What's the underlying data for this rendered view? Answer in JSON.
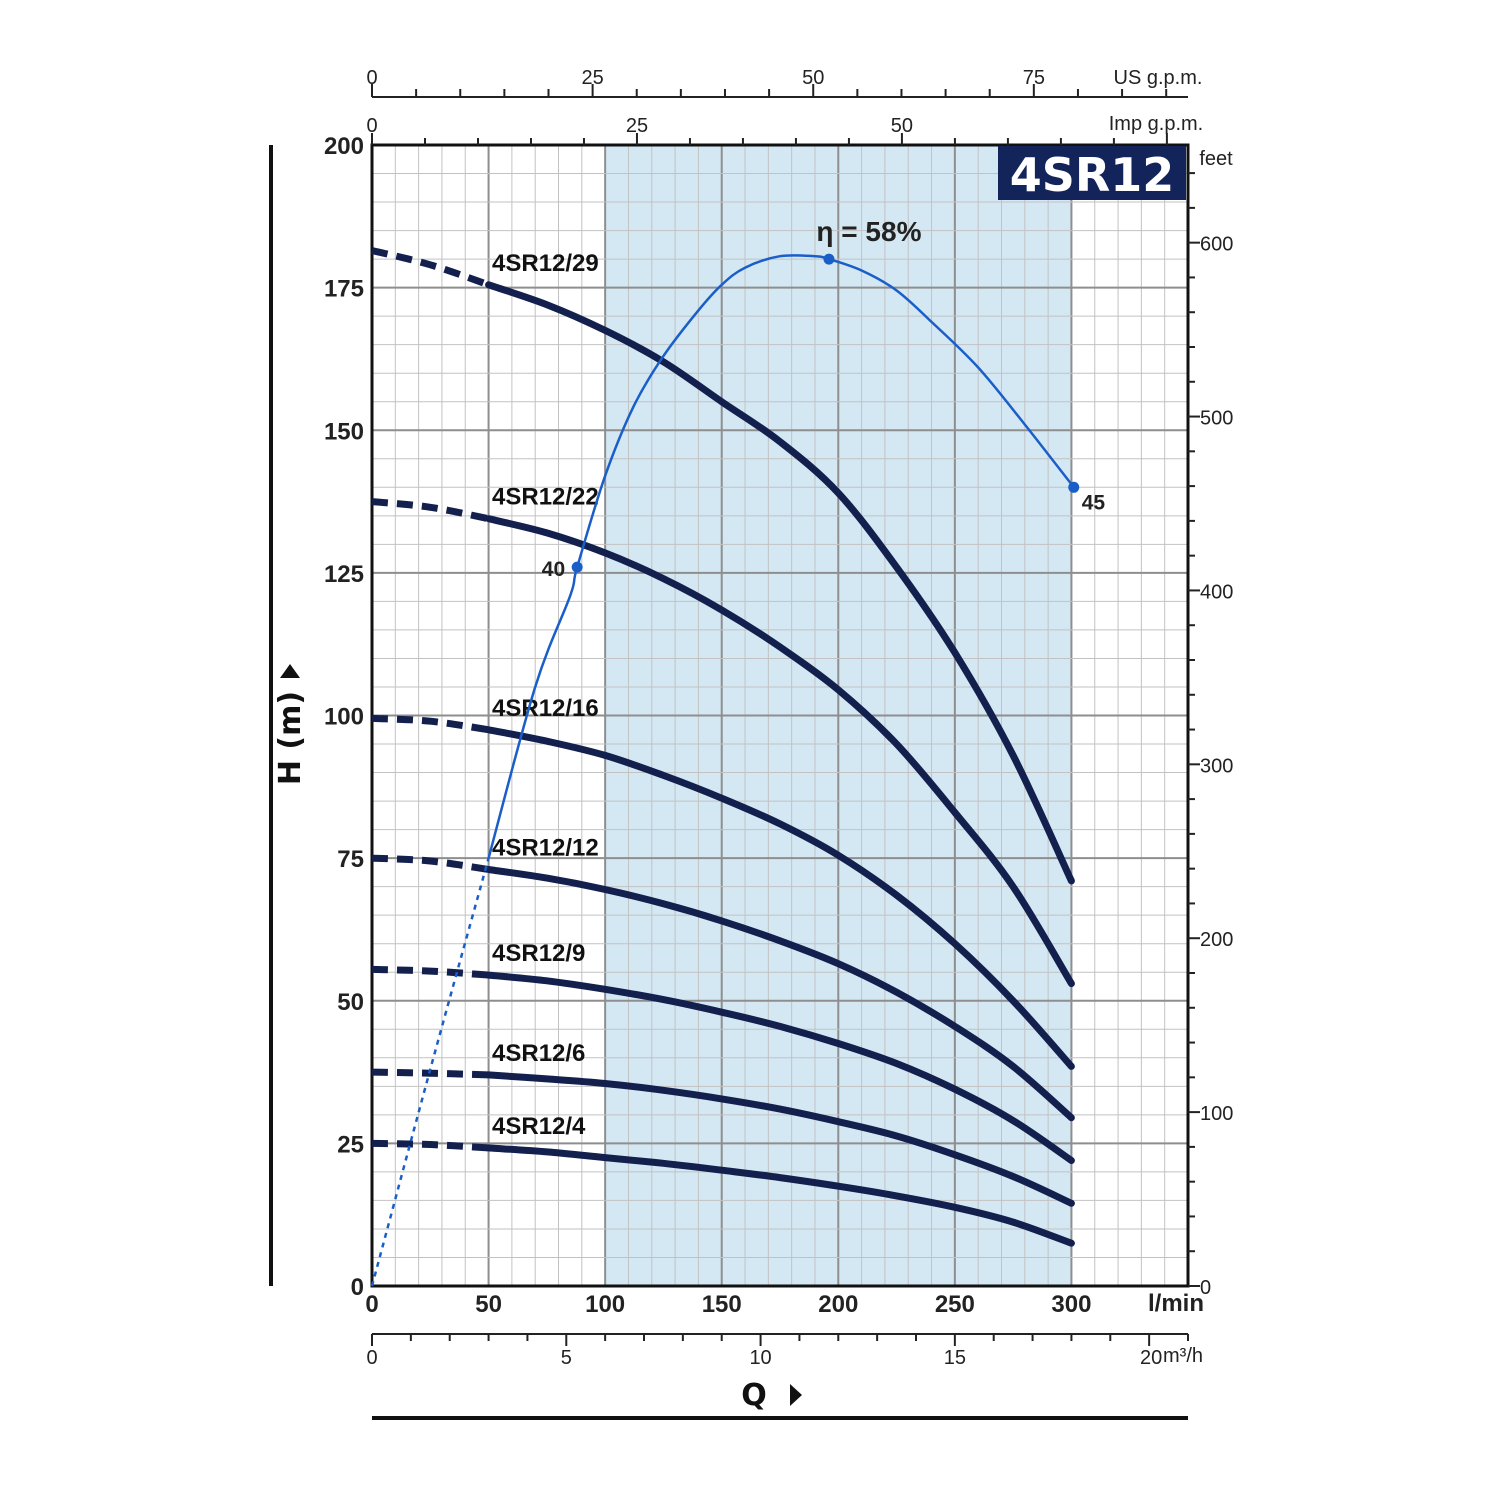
{
  "chart_data": {
    "type": "line",
    "badge": "4SR12",
    "xlabel": "Q",
    "ylabel": "H (m)",
    "x_unit": "l/min",
    "xlim": [
      0,
      350
    ],
    "ylim": [
      0,
      200
    ],
    "x_ticks": [
      0,
      50,
      100,
      150,
      200,
      250,
      300
    ],
    "y_ticks": [
      0,
      25,
      50,
      75,
      100,
      125,
      150,
      175,
      200
    ],
    "grid": true,
    "recommended_range": [
      100,
      300
    ],
    "colors": {
      "curve": "#13204e",
      "efficiency": "#1a5ec8",
      "shade": "#d4e8f4",
      "grid": "#b0b0b0",
      "badge_bg": "#13245a"
    },
    "us_gpm_axis": {
      "unit": "US g.p.m.",
      "ticks": [
        0,
        25,
        50,
        75
      ]
    },
    "imp_gpm_axis": {
      "unit": "Imp g.p.m.",
      "ticks": [
        0,
        25,
        50
      ]
    },
    "feet_axis": {
      "unit": "feet",
      "ticks": [
        0,
        100,
        200,
        300,
        400,
        500,
        600
      ]
    },
    "m3h_axis": {
      "unit": "m³/h",
      "ticks": [
        0,
        5,
        10,
        15,
        20
      ]
    },
    "series": [
      {
        "name": "4SR12/29",
        "x": [
          0,
          25,
          50,
          75,
          100,
          125,
          150,
          175,
          200,
          225,
          250,
          275,
          300
        ],
        "y": [
          181.5,
          179,
          175.5,
          172,
          167.5,
          162,
          155,
          148,
          139,
          126,
          111,
          93,
          71
        ]
      },
      {
        "name": "4SR12/22",
        "x": [
          0,
          25,
          50,
          75,
          100,
          125,
          150,
          175,
          200,
          225,
          250,
          275,
          300
        ],
        "y": [
          137.5,
          136.5,
          134.5,
          132,
          128.5,
          124,
          118.5,
          112,
          104.5,
          95,
          83,
          70,
          53
        ]
      },
      {
        "name": "4SR12/16",
        "x": [
          0,
          25,
          50,
          75,
          100,
          125,
          150,
          175,
          200,
          225,
          250,
          275,
          300
        ],
        "y": [
          99.5,
          99,
          97.5,
          95.5,
          93,
          89.5,
          85.5,
          81,
          75.5,
          68.5,
          60,
          50,
          38.5
        ]
      },
      {
        "name": "4SR12/12",
        "x": [
          0,
          25,
          50,
          75,
          100,
          125,
          150,
          175,
          200,
          225,
          250,
          275,
          300
        ],
        "y": [
          75,
          74.5,
          73,
          71.5,
          69.5,
          67,
          64,
          60.5,
          56.5,
          51.5,
          45.5,
          38.5,
          29.5
        ]
      },
      {
        "name": "4SR12/9",
        "x": [
          0,
          25,
          50,
          75,
          100,
          125,
          150,
          175,
          200,
          225,
          250,
          275,
          300
        ],
        "y": [
          55.5,
          55.2,
          54.5,
          53.5,
          52,
          50.2,
          48,
          45.5,
          42.5,
          39,
          34.5,
          29,
          22
        ]
      },
      {
        "name": "4SR12/6",
        "x": [
          0,
          25,
          50,
          75,
          100,
          125,
          150,
          175,
          200,
          225,
          250,
          275,
          300
        ],
        "y": [
          37.5,
          37.3,
          37,
          36.3,
          35.5,
          34.3,
          32.8,
          31,
          28.8,
          26.3,
          23,
          19.2,
          14.5
        ]
      },
      {
        "name": "4SR12/4",
        "x": [
          0,
          25,
          50,
          75,
          100,
          125,
          150,
          175,
          200,
          225,
          250,
          275,
          300
        ],
        "y": [
          25,
          24.8,
          24.2,
          23.5,
          22.5,
          21.5,
          20.3,
          19,
          17.5,
          15.8,
          13.8,
          11.2,
          7.5
        ]
      }
    ],
    "efficiency_curve": {
      "label": "η = 58%",
      "x": [
        0,
        25,
        50,
        70,
        85,
        88,
        100,
        112,
        125,
        140,
        150,
        160,
        175,
        190,
        196,
        210,
        225,
        240,
        260,
        280,
        301
      ],
      "y": [
        0,
        38,
        75,
        105,
        121,
        126,
        142,
        154,
        163,
        171,
        175.5,
        178.5,
        180.5,
        180.5,
        180,
        178,
        174.5,
        169,
        161,
        151,
        140
      ],
      "dashed_until": 50,
      "points": [
        {
          "x": 88,
          "y": 126,
          "label": "40"
        },
        {
          "x": 196,
          "y": 180,
          "label": ""
        },
        {
          "x": 301,
          "y": 140,
          "label": "45"
        }
      ]
    }
  }
}
